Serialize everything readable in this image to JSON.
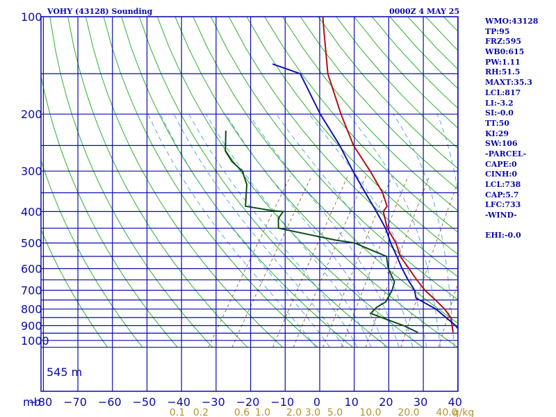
{
  "header": {
    "title": "VOHY (43128) Sounding",
    "datetime": "0000Z  4 MAY 25"
  },
  "corner_label": "mb",
  "height_label": "545 m",
  "indices": [
    "WMO:43128",
    "TP:95",
    "FRZ:595",
    "WB0:615",
    "PW:1.11",
    "RH:51.5",
    "MAXT:35.3",
    "LCL:817",
    "LI:-3.2",
    "SI:-0.0",
    "TT:50",
    "KI:29",
    "SW:106",
    "-PARCEL-",
    "CAPE:0",
    "CINH:0",
    "LCL:738",
    "CAP:5.7",
    "LFC:733",
    "-WIND-",
    "",
    "EHI:-0.0"
  ],
  "colors": {
    "frame": "#0a0aa8",
    "dry_adiabat": "#2bb02b",
    "moist_adiabat": "#5aa8d8",
    "mixing_ratio": "#8c7440",
    "temperature": "#b01010",
    "dewpoint": "#0b4d14",
    "parcel": "#1010b0",
    "mix_label": "#b0942f"
  },
  "chart_data": {
    "type": "line",
    "title": "VOHY (43128) Sounding",
    "xlabel": "",
    "ylabel": "mb",
    "y_scale": "log-pressure",
    "x_ticks": [
      -80,
      -70,
      -60,
      -50,
      -40,
      -30,
      -20,
      -10,
      0,
      10,
      20,
      30,
      40
    ],
    "y_ticks": [
      100,
      200,
      300,
      400,
      500,
      600,
      700,
      800,
      900,
      1000
    ],
    "mixing_ratio_ticks": [
      "0.1",
      "0.2",
      "0.6",
      "1.0",
      "2.0",
      "3.0",
      "5.0",
      "10.0",
      "20.0",
      "40.0"
    ],
    "mixing_ratio_unit": "g/kg",
    "series": [
      {
        "key": "temperature",
        "values": [
          [
            945,
            26.7
          ],
          [
            900,
            25
          ],
          [
            850,
            23
          ],
          [
            800,
            19.5
          ],
          [
            750,
            15
          ],
          [
            700,
            10
          ],
          [
            650,
            5.5
          ],
          [
            600,
            1
          ],
          [
            550,
            -4
          ],
          [
            500,
            -8
          ],
          [
            450,
            -13.5
          ],
          [
            400,
            -18
          ],
          [
            385,
            -18
          ],
          [
            350,
            -22
          ],
          [
            300,
            -30
          ],
          [
            250,
            -40
          ],
          [
            200,
            -50
          ],
          [
            150,
            -62
          ],
          [
            110,
            -72
          ],
          [
            100,
            -75
          ]
        ]
      },
      {
        "key": "dewpoint",
        "values": [
          [
            945,
            16.5
          ],
          [
            900,
            11
          ],
          [
            850,
            3
          ],
          [
            825,
            -1
          ],
          [
            790,
            -0.5
          ],
          [
            760,
            1
          ],
          [
            700,
            0.5
          ],
          [
            660,
            -0.5
          ],
          [
            600,
            -5
          ],
          [
            550,
            -8
          ],
          [
            500,
            -20
          ],
          [
            490,
            -26
          ],
          [
            450,
            -45
          ],
          [
            420,
            -47
          ],
          [
            400,
            -47
          ],
          [
            398,
            -50
          ],
          [
            385,
            -59
          ],
          [
            330,
            -63
          ],
          [
            300,
            -67
          ],
          [
            280,
            -72
          ],
          [
            260,
            -76
          ],
          [
            225,
            -80
          ]
        ]
      },
      {
        "key": "parcel",
        "values": [
          [
            945,
            29
          ],
          [
            900,
            26
          ],
          [
            800,
            17
          ],
          [
            740,
            9
          ],
          [
            700,
            7
          ],
          [
            650,
            3
          ],
          [
            600,
            -1
          ],
          [
            550,
            -5
          ],
          [
            500,
            -9.5
          ],
          [
            450,
            -14
          ],
          [
            400,
            -20
          ],
          [
            350,
            -27
          ],
          [
            300,
            -35
          ],
          [
            250,
            -44
          ],
          [
            200,
            -56
          ],
          [
            150,
            -70
          ],
          [
            140,
            -80
          ]
        ]
      }
    ]
  }
}
